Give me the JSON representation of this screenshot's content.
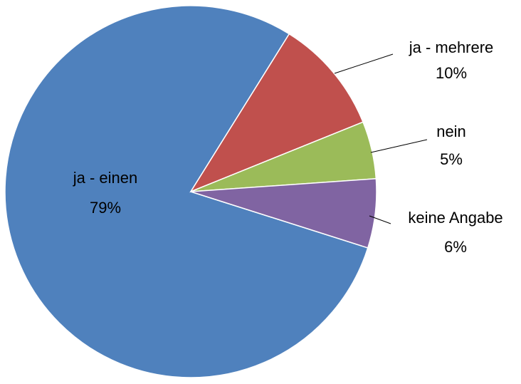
{
  "chart_data": {
    "type": "pie",
    "categories": [
      "ja - einen",
      "ja - mehrere",
      "nein",
      "keine Angabe"
    ],
    "values": [
      79,
      10,
      5,
      6
    ],
    "value_labels": [
      "79%",
      "10%",
      "5%",
      "6%"
    ],
    "colors": [
      "#4f81bd",
      "#c0504d",
      "#9bbb59",
      "#8064a2"
    ]
  }
}
